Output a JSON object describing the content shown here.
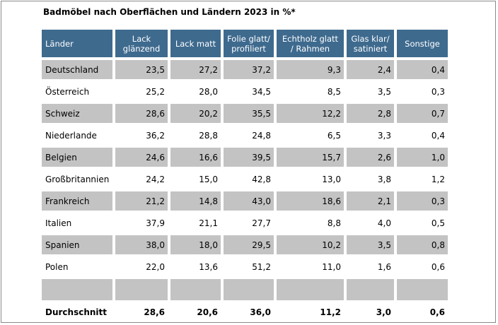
{
  "chart_data": {
    "type": "table",
    "title": "Badmöbel nach Oberflächen und Ländern 2023 in %*",
    "columns": [
      "Länder",
      "Lack glänzend",
      "Lack matt",
      "Folie glatt/ profiliert",
      "Echtholz glatt / Rahmen",
      "Glas klar/ satiniert",
      "Sonstige"
    ],
    "header_lines": [
      [
        "Länder"
      ],
      [
        "Lack",
        "glänzend"
      ],
      [
        "Lack matt"
      ],
      [
        "Folie glatt/",
        "profiliert"
      ],
      [
        "Echtholz glatt",
        "/ Rahmen"
      ],
      [
        "Glas klar/",
        "satiniert"
      ],
      [
        "Sonstige"
      ]
    ],
    "rows": [
      {
        "country": "Deutschland",
        "values": [
          "23,5",
          "27,2",
          "37,2",
          "9,3",
          "2,4",
          "0,4"
        ]
      },
      {
        "country": "Österreich",
        "values": [
          "25,2",
          "28,0",
          "34,5",
          "8,5",
          "3,5",
          "0,3"
        ]
      },
      {
        "country": "Schweiz",
        "values": [
          "28,6",
          "20,2",
          "35,5",
          "12,2",
          "2,8",
          "0,7"
        ]
      },
      {
        "country": "Niederlande",
        "values": [
          "36,2",
          "28,8",
          "24,8",
          "6,5",
          "3,3",
          "0,4"
        ]
      },
      {
        "country": "Belgien",
        "values": [
          "24,6",
          "16,6",
          "39,5",
          "15,7",
          "2,6",
          "1,0"
        ]
      },
      {
        "country": "Großbritannien",
        "values": [
          "24,2",
          "15,0",
          "42,8",
          "13,0",
          "3,8",
          "1,2"
        ]
      },
      {
        "country": "Frankreich",
        "values": [
          "21,2",
          "14,8",
          "43,0",
          "18,6",
          "2,1",
          "0,3"
        ]
      },
      {
        "country": "Italien",
        "values": [
          "37,9",
          "21,1",
          "27,7",
          "8,8",
          "4,0",
          "0,5"
        ]
      },
      {
        "country": "Spanien",
        "values": [
          "38,0",
          "18,0",
          "29,5",
          "10,2",
          "3,5",
          "0,8"
        ]
      },
      {
        "country": "Polen",
        "values": [
          "22,0",
          "13,6",
          "51,2",
          "11,0",
          "1,6",
          "0,6"
        ]
      }
    ],
    "average": {
      "label": "Durchschnitt",
      "values": [
        "28,6",
        "20,6",
        "36,0",
        "11,2",
        "3,0",
        "0,6"
      ]
    }
  },
  "colors": {
    "header_bg": "#3e6a8e",
    "header_text": "#ffffff",
    "shaded_row": "#c3c3c3"
  }
}
